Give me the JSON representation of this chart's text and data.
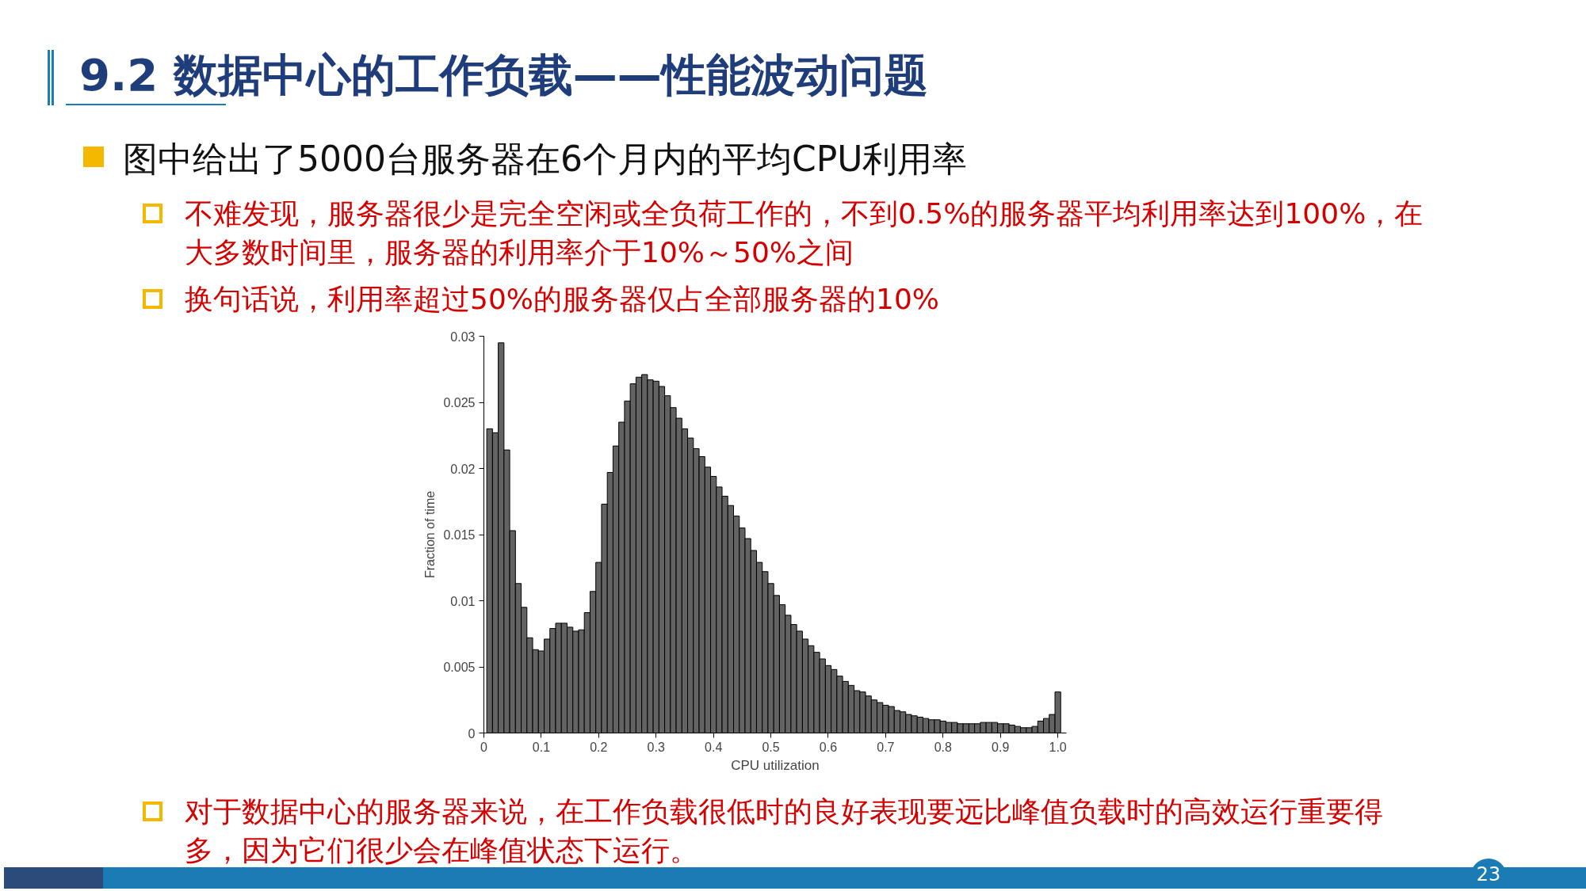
{
  "chart_data": {
    "type": "histogram",
    "title": "9.2  数据中心的工作负载——性能波动问题",
    "xlabel": "CPU utilization",
    "ylabel": "Fraction of time",
    "annotations": [
      "图中给出了5000台服务器在6个月内的平均CPU利用率",
      "不难发现，服务器很少是完全空闲或全负荷工作的，不到0.5%的服务器平均利用率达到100%，在大多数时间里，服务器的利用率介于10%～50%之间",
      "换句话说，利用率超过50%的服务器仅占全部服务器的10%",
      "对于数据中心的服务器来说，在工作负载很低时的良好表现要远比峰值负载时的高效运行重要得多，因为它们很少会在峰值状态下运行。",
      "23"
    ],
    "bins": [
      0.005,
      0.015,
      0.025,
      0.035,
      0.045,
      0.055,
      0.065,
      0.075,
      0.085,
      0.095,
      0.105,
      0.115,
      0.125,
      0.135,
      0.145,
      0.155,
      0.165,
      0.175,
      0.185,
      0.195,
      0.205,
      0.215,
      0.225,
      0.235,
      0.245,
      0.255,
      0.265,
      0.275,
      0.285,
      0.295,
      0.305,
      0.315,
      0.325,
      0.335,
      0.345,
      0.355,
      0.365,
      0.375,
      0.385,
      0.395,
      0.405,
      0.415,
      0.425,
      0.435,
      0.445,
      0.455,
      0.465,
      0.475,
      0.485,
      0.495,
      0.505,
      0.515,
      0.525,
      0.535,
      0.545,
      0.555,
      0.565,
      0.575,
      0.585,
      0.595,
      0.605,
      0.615,
      0.625,
      0.635,
      0.645,
      0.655,
      0.665,
      0.675,
      0.685,
      0.695,
      0.705,
      0.715,
      0.725,
      0.735,
      0.745,
      0.755,
      0.765,
      0.775,
      0.785,
      0.795,
      0.805,
      0.815,
      0.825,
      0.835,
      0.845,
      0.855,
      0.865,
      0.875,
      0.885,
      0.895,
      0.905,
      0.915,
      0.925,
      0.935,
      0.945,
      0.955,
      0.965,
      0.975,
      0.985,
      0.995,
      1.005
    ],
    "values": [
      0.023,
      0.0227,
      0.0295,
      0.0214,
      0.0153,
      0.0113,
      0.0095,
      0.0072,
      0.0063,
      0.0062,
      0.0071,
      0.0079,
      0.0083,
      0.0083,
      0.008,
      0.0077,
      0.0078,
      0.0091,
      0.0107,
      0.0129,
      0.0173,
      0.0197,
      0.0217,
      0.0235,
      0.0251,
      0.0264,
      0.0269,
      0.0271,
      0.0267,
      0.0266,
      0.0262,
      0.0255,
      0.0246,
      0.0238,
      0.023,
      0.0223,
      0.0215,
      0.0209,
      0.0201,
      0.0194,
      0.0186,
      0.0179,
      0.0172,
      0.0164,
      0.0155,
      0.0147,
      0.0138,
      0.0129,
      0.0122,
      0.0113,
      0.0104,
      0.0097,
      0.0089,
      0.0082,
      0.0077,
      0.0071,
      0.0066,
      0.0061,
      0.0056,
      0.0051,
      0.0048,
      0.0043,
      0.0039,
      0.0036,
      0.0032,
      0.0031,
      0.0028,
      0.0025,
      0.0023,
      0.0021,
      0.002,
      0.0017,
      0.0016,
      0.0014,
      0.0013,
      0.0012,
      0.0011,
      0.001,
      0.001,
      0.0009,
      0.0008,
      0.0008,
      0.0007,
      0.0007,
      0.0007,
      0.0007,
      0.0008,
      0.0008,
      0.0008,
      0.0007,
      0.0007,
      0.0006,
      0.0005,
      0.0004,
      0.0004,
      0.0005,
      0.0009,
      0.0011,
      0.0014,
      0.0031
    ],
    "color": "#636363",
    "xlim": [
      0,
      1.015
    ],
    "ylim": [
      0,
      0.03
    ],
    "xticks": [
      0,
      0.1,
      0.2,
      0.3,
      0.4,
      0.5,
      0.6,
      0.7,
      0.8,
      0.9,
      {
        "value": 1,
        "label": "1.0"
      }
    ],
    "yticks": [
      0,
      0.005,
      0.01,
      0.015,
      0.02,
      0.025,
      0.03
    ]
  }
}
